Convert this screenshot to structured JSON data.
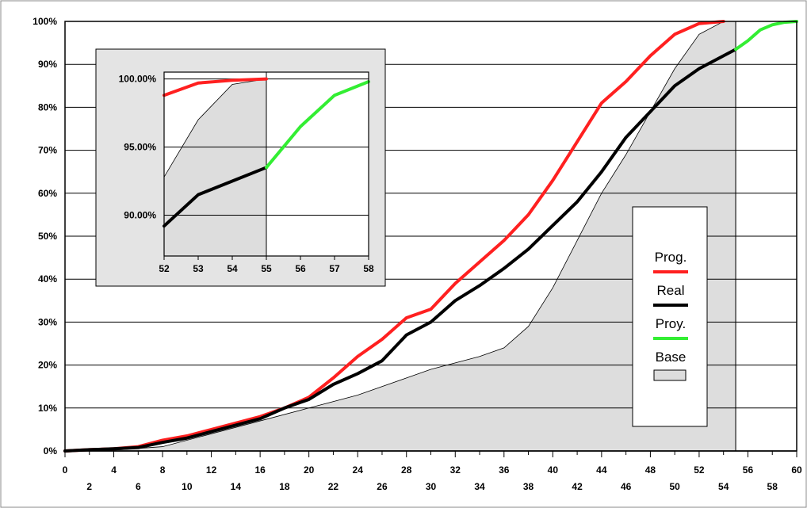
{
  "chart_data": [
    {
      "type": "area",
      "title": "",
      "xlabel": "",
      "ylabel": "",
      "xlim": [
        0,
        60
      ],
      "ylim": [
        0,
        100
      ],
      "yticks": [
        "0%",
        "10%",
        "20%",
        "30%",
        "40%",
        "50%",
        "60%",
        "70%",
        "80%",
        "90%",
        "100%"
      ],
      "xticks_upper": [
        "0",
        "4",
        "8",
        "12",
        "16",
        "20",
        "24",
        "28",
        "32",
        "36",
        "40",
        "44",
        "48",
        "52",
        "56",
        "60"
      ],
      "xticks_lower": [
        "2",
        "6",
        "10",
        "14",
        "18",
        "22",
        "26",
        "30",
        "34",
        "38",
        "42",
        "46",
        "50",
        "54",
        "58"
      ],
      "grid": true,
      "legend_position": "right",
      "series": [
        {
          "name": "Prog.",
          "color": "#ff2020",
          "x": [
            0,
            2,
            4,
            6,
            8,
            10,
            12,
            14,
            16,
            18,
            20,
            22,
            24,
            26,
            28,
            30,
            32,
            34,
            36,
            38,
            40,
            42,
            44,
            46,
            48,
            50,
            52,
            54
          ],
          "y": [
            0,
            0.3,
            0.5,
            1,
            2.5,
            3.5,
            5,
            6.5,
            8,
            10,
            12.5,
            17,
            22,
            26,
            31,
            33,
            39,
            44,
            49,
            55,
            63,
            72,
            81,
            86,
            92,
            97,
            99.5,
            100
          ]
        },
        {
          "name": "Real",
          "color": "#000000",
          "x": [
            0,
            2,
            4,
            6,
            8,
            10,
            12,
            14,
            16,
            18,
            20,
            22,
            24,
            26,
            28,
            30,
            32,
            34,
            36,
            38,
            40,
            42,
            44,
            46,
            48,
            50,
            52,
            54,
            55
          ],
          "y": [
            0,
            0.3,
            0.5,
            0.8,
            2,
            3,
            4.5,
            6,
            7.5,
            10,
            12,
            15.5,
            18,
            21,
            27,
            30,
            35,
            38.5,
            42.5,
            47,
            52.5,
            58,
            65,
            73,
            79,
            85,
            89,
            92,
            93.5
          ]
        },
        {
          "name": "Proy.",
          "color": "#33ee33",
          "x": [
            55,
            56,
            57,
            58,
            59,
            60
          ],
          "y": [
            93.5,
            95.5,
            98,
            99.2,
            99.8,
            100
          ]
        },
        {
          "name": "Base",
          "color": "#dddddd",
          "x": [
            0,
            4,
            8,
            12,
            16,
            20,
            24,
            28,
            30,
            34,
            36,
            38,
            40,
            42,
            44,
            46,
            48,
            50,
            52,
            54,
            55
          ],
          "y": [
            0,
            0.2,
            1,
            4,
            7,
            10,
            13,
            17,
            19,
            22,
            24,
            29,
            38,
            49,
            60,
            69,
            79,
            89,
            97,
            100,
            100
          ]
        }
      ]
    },
    {
      "type": "line",
      "title": "",
      "xlim": [
        52,
        58
      ],
      "ylim": [
        87,
        100.5
      ],
      "xticks": [
        "52",
        "53",
        "54",
        "55",
        "56",
        "57",
        "58"
      ],
      "yticks": [
        "90.00%",
        "95.00%",
        "100.00%"
      ],
      "grid": true,
      "series": [
        {
          "name": "Prog.",
          "color": "#ff2020",
          "x": [
            52,
            53,
            54,
            55
          ],
          "y": [
            98.8,
            99.7,
            99.9,
            100
          ]
        },
        {
          "name": "Real",
          "color": "#000000",
          "x": [
            52,
            53,
            54,
            55
          ],
          "y": [
            89.2,
            91.5,
            92.5,
            93.5
          ]
        },
        {
          "name": "Proy.",
          "color": "#33ee33",
          "x": [
            55,
            56,
            57,
            58
          ],
          "y": [
            93.5,
            96.5,
            98.8,
            99.8
          ]
        },
        {
          "name": "Base",
          "color": "#dddddd",
          "x": [
            52,
            53,
            54,
            55
          ],
          "y": [
            92.8,
            97.0,
            99.6,
            100
          ]
        }
      ]
    }
  ],
  "legend": {
    "items": [
      {
        "label": "Prog.",
        "color": "#ff2020",
        "kind": "line"
      },
      {
        "label": "Real",
        "color": "#000000",
        "kind": "line"
      },
      {
        "label": "Proy.",
        "color": "#33ee33",
        "kind": "line"
      },
      {
        "label": "Base",
        "color": "#dddddd",
        "kind": "box"
      }
    ]
  }
}
